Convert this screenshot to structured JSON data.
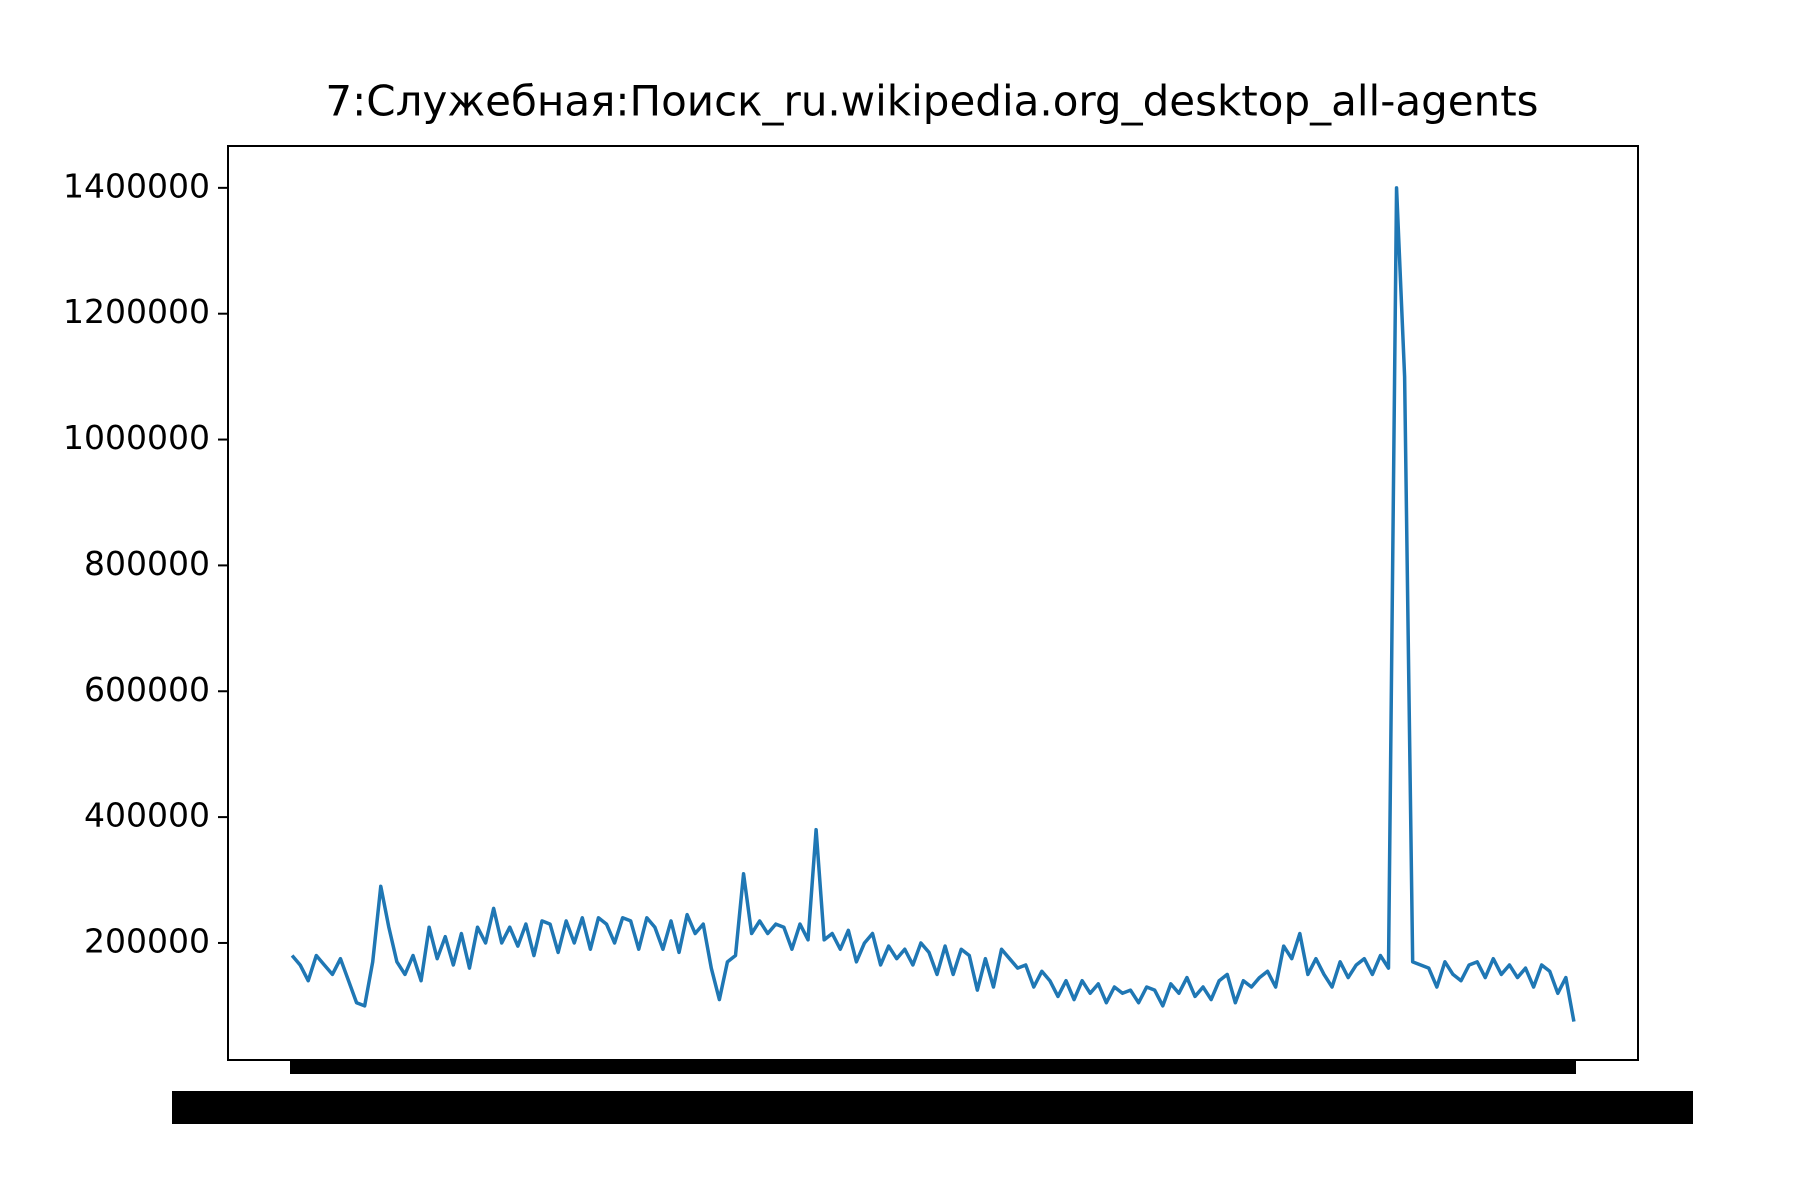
{
  "chart_data": {
    "type": "line",
    "title": "7:Служебная:Поиск_ru.wikipedia.org_desktop_all-agents",
    "color": "#1f77b4",
    "xlim": [
      -7.95,
      166.95
    ],
    "ylim": [
      14000,
      1466500
    ],
    "yticks": [
      200000,
      400000,
      600000,
      800000,
      1000000,
      1200000,
      1400000
    ],
    "values": [
      180000,
      165000,
      140000,
      180000,
      165000,
      150000,
      175000,
      140000,
      105000,
      100000,
      170000,
      290000,
      225000,
      170000,
      150000,
      180000,
      140000,
      225000,
      175000,
      210000,
      165000,
      215000,
      160000,
      225000,
      200000,
      255000,
      200000,
      225000,
      195000,
      230000,
      180000,
      235000,
      230000,
      185000,
      235000,
      200000,
      240000,
      190000,
      240000,
      230000,
      200000,
      240000,
      235000,
      190000,
      240000,
      225000,
      190000,
      235000,
      185000,
      245000,
      215000,
      230000,
      160000,
      110000,
      170000,
      180000,
      310000,
      215000,
      235000,
      215000,
      230000,
      225000,
      190000,
      230000,
      205000,
      380000,
      205000,
      215000,
      190000,
      220000,
      170000,
      200000,
      215000,
      165000,
      195000,
      175000,
      190000,
      165000,
      200000,
      185000,
      150000,
      195000,
      150000,
      190000,
      180000,
      125000,
      175000,
      130000,
      190000,
      175000,
      160000,
      165000,
      130000,
      155000,
      140000,
      115000,
      140000,
      110000,
      140000,
      120000,
      135000,
      105000,
      130000,
      120000,
      125000,
      105000,
      130000,
      125000,
      100000,
      135000,
      120000,
      145000,
      115000,
      130000,
      110000,
      140000,
      150000,
      105000,
      140000,
      130000,
      145000,
      155000,
      130000,
      195000,
      175000,
      215000,
      150000,
      175000,
      150000,
      130000,
      170000,
      145000,
      165000,
      175000,
      150000,
      180000,
      160000,
      1400000,
      1100000,
      170000,
      165000,
      160000,
      130000,
      170000,
      150000,
      140000,
      165000,
      170000,
      145000,
      175000,
      150000,
      165000,
      145000,
      160000,
      130000,
      165000,
      155000,
      120000,
      145000,
      75000
    ]
  }
}
